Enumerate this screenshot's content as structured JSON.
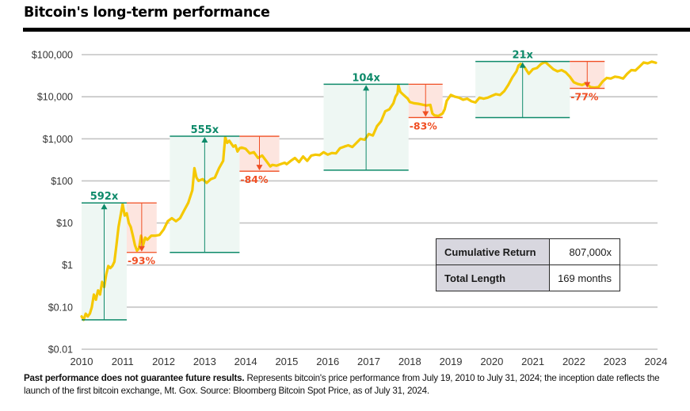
{
  "chart_data": {
    "type": "line",
    "title": "Bitcoin's long-term performance",
    "xlabel": "",
    "ylabel": "",
    "yscale": "log",
    "ylim": [
      0.01,
      100000
    ],
    "xlim": [
      2010,
      2024
    ],
    "grid": true,
    "y_ticks": [
      {
        "value": 100000,
        "label": "$100,000"
      },
      {
        "value": 10000,
        "label": "$10,000"
      },
      {
        "value": 1000,
        "label": "$1,000"
      },
      {
        "value": 100,
        "label": "$100"
      },
      {
        "value": 10,
        "label": "$10"
      },
      {
        "value": 1,
        "label": "$1"
      },
      {
        "value": 0.1,
        "label": "$0.10"
      },
      {
        "value": 0.01,
        "label": "$0.01"
      }
    ],
    "x_ticks": [
      "2010",
      "2011",
      "2012",
      "2013",
      "2014",
      "2015",
      "2016",
      "2017",
      "2018",
      "2019",
      "2020",
      "2021",
      "2022",
      "2023",
      "2024"
    ],
    "series": [
      {
        "name": "Bloomberg Bitcoin Spot Price",
        "color": "#f5c800",
        "points": [
          [
            2010.0,
            0.06
          ],
          [
            2010.05,
            0.05
          ],
          [
            2010.1,
            0.07
          ],
          [
            2010.15,
            0.06
          ],
          [
            2010.2,
            0.07
          ],
          [
            2010.25,
            0.1
          ],
          [
            2010.3,
            0.2
          ],
          [
            2010.35,
            0.15
          ],
          [
            2010.4,
            0.25
          ],
          [
            2010.45,
            0.2
          ],
          [
            2010.5,
            0.4
          ],
          [
            2010.55,
            0.3
          ],
          [
            2010.6,
            0.6
          ],
          [
            2010.65,
            0.95
          ],
          [
            2010.7,
            0.85
          ],
          [
            2010.75,
            0.95
          ],
          [
            2010.8,
            1.2
          ],
          [
            2010.85,
            3
          ],
          [
            2010.9,
            8
          ],
          [
            2010.95,
            15
          ],
          [
            2011.0,
            28
          ],
          [
            2011.05,
            15
          ],
          [
            2011.1,
            17
          ],
          [
            2011.15,
            10
          ],
          [
            2011.2,
            8
          ],
          [
            2011.25,
            5
          ],
          [
            2011.3,
            3
          ],
          [
            2011.35,
            2.2
          ],
          [
            2011.4,
            2.5
          ],
          [
            2011.45,
            5
          ],
          [
            2011.5,
            3
          ],
          [
            2011.55,
            4.5
          ],
          [
            2011.6,
            4
          ],
          [
            2011.7,
            5
          ],
          [
            2011.8,
            5
          ],
          [
            2011.9,
            5.2
          ],
          [
            2012.0,
            7
          ],
          [
            2012.1,
            11
          ],
          [
            2012.2,
            13
          ],
          [
            2012.3,
            11
          ],
          [
            2012.4,
            13
          ],
          [
            2012.5,
            20
          ],
          [
            2012.6,
            30
          ],
          [
            2012.7,
            60
          ],
          [
            2012.75,
            200
          ],
          [
            2012.8,
            120
          ],
          [
            2012.85,
            100
          ],
          [
            2012.95,
            110
          ],
          [
            2013.05,
            90
          ],
          [
            2013.15,
            110
          ],
          [
            2013.25,
            120
          ],
          [
            2013.35,
            200
          ],
          [
            2013.45,
            300
          ],
          [
            2013.5,
            1100
          ],
          [
            2013.55,
            800
          ],
          [
            2013.6,
            900
          ],
          [
            2013.7,
            650
          ],
          [
            2013.75,
            700
          ],
          [
            2013.8,
            500
          ],
          [
            2013.85,
            600
          ],
          [
            2013.9,
            620
          ],
          [
            2014.0,
            580
          ],
          [
            2014.1,
            450
          ],
          [
            2014.2,
            480
          ],
          [
            2014.3,
            350
          ],
          [
            2014.4,
            400
          ],
          [
            2014.5,
            300
          ],
          [
            2014.6,
            220
          ],
          [
            2014.65,
            240
          ],
          [
            2014.75,
            230
          ],
          [
            2014.85,
            250
          ],
          [
            2014.95,
            270
          ],
          [
            2015.0,
            250
          ],
          [
            2015.1,
            300
          ],
          [
            2015.2,
            350
          ],
          [
            2015.3,
            280
          ],
          [
            2015.4,
            380
          ],
          [
            2015.5,
            300
          ],
          [
            2015.6,
            400
          ],
          [
            2015.7,
            420
          ],
          [
            2015.8,
            410
          ],
          [
            2015.9,
            480
          ],
          [
            2016.0,
            420
          ],
          [
            2016.1,
            460
          ],
          [
            2016.2,
            450
          ],
          [
            2016.3,
            600
          ],
          [
            2016.4,
            650
          ],
          [
            2016.5,
            700
          ],
          [
            2016.6,
            640
          ],
          [
            2016.7,
            800
          ],
          [
            2016.8,
            1000
          ],
          [
            2016.9,
            950
          ],
          [
            2017.0,
            1300
          ],
          [
            2017.1,
            1200
          ],
          [
            2017.2,
            2000
          ],
          [
            2017.3,
            2600
          ],
          [
            2017.4,
            4500
          ],
          [
            2017.5,
            5000
          ],
          [
            2017.6,
            7000
          ],
          [
            2017.65,
            10000
          ],
          [
            2017.7,
            12000
          ],
          [
            2017.72,
            19000
          ],
          [
            2017.77,
            13000
          ],
          [
            2017.85,
            11000
          ],
          [
            2017.95,
            9000
          ],
          [
            2018.0,
            7500
          ],
          [
            2018.1,
            7000
          ],
          [
            2018.2,
            6800
          ],
          [
            2018.3,
            6500
          ],
          [
            2018.4,
            6200
          ],
          [
            2018.5,
            6400
          ],
          [
            2018.55,
            4000
          ],
          [
            2018.6,
            3600
          ],
          [
            2018.7,
            3500
          ],
          [
            2018.8,
            4000
          ],
          [
            2018.85,
            5000
          ],
          [
            2018.9,
            8000
          ],
          [
            2019.0,
            11000
          ],
          [
            2019.1,
            10000
          ],
          [
            2019.2,
            9500
          ],
          [
            2019.3,
            8500
          ],
          [
            2019.4,
            9000
          ],
          [
            2019.5,
            7800
          ],
          [
            2019.6,
            7300
          ],
          [
            2019.7,
            9500
          ],
          [
            2019.8,
            9000
          ],
          [
            2019.9,
            9500
          ],
          [
            2020.0,
            10500
          ],
          [
            2020.1,
            11500
          ],
          [
            2020.2,
            11000
          ],
          [
            2020.3,
            13500
          ],
          [
            2020.4,
            19000
          ],
          [
            2020.5,
            29000
          ],
          [
            2020.6,
            40000
          ],
          [
            2020.65,
            55000
          ],
          [
            2020.7,
            60000
          ],
          [
            2020.8,
            50000
          ],
          [
            2020.9,
            35000
          ],
          [
            2021.0,
            45000
          ],
          [
            2021.1,
            48000
          ],
          [
            2021.2,
            60000
          ],
          [
            2021.3,
            67000
          ],
          [
            2021.4,
            55000
          ],
          [
            2021.5,
            45000
          ],
          [
            2021.6,
            40000
          ],
          [
            2021.7,
            43000
          ],
          [
            2021.8,
            38000
          ],
          [
            2021.9,
            30000
          ],
          [
            2022.0,
            22000
          ],
          [
            2022.1,
            20000
          ],
          [
            2022.2,
            19000
          ],
          [
            2022.3,
            21000
          ],
          [
            2022.4,
            17000
          ],
          [
            2022.5,
            16500
          ],
          [
            2022.6,
            17000
          ],
          [
            2022.7,
            23000
          ],
          [
            2022.8,
            28000
          ],
          [
            2022.9,
            27000
          ],
          [
            2023.0,
            30000
          ],
          [
            2023.1,
            29000
          ],
          [
            2023.2,
            27000
          ],
          [
            2023.3,
            35000
          ],
          [
            2023.4,
            43000
          ],
          [
            2023.5,
            42000
          ],
          [
            2023.6,
            52000
          ],
          [
            2023.7,
            65000
          ],
          [
            2023.8,
            62000
          ],
          [
            2023.9,
            68000
          ],
          [
            2024.0,
            64000
          ]
        ]
      }
    ],
    "gain_periods": [
      {
        "label": "592x",
        "start": 2010.0,
        "end": 2011.1,
        "low": 0.05,
        "high": 30
      },
      {
        "label": "555x",
        "start": 2012.15,
        "end": 2013.85,
        "low": 2,
        "high": 1150
      },
      {
        "label": "104x",
        "start": 2015.9,
        "end": 2017.97,
        "low": 180,
        "high": 19800
      },
      {
        "label": "21x",
        "start": 2019.6,
        "end": 2021.9,
        "low": 3200,
        "high": 69000
      }
    ],
    "drawdown_periods": [
      {
        "label": "-93%",
        "start": 2011.1,
        "end": 2011.83,
        "high": 30,
        "low": 2
      },
      {
        "label": "-84%",
        "start": 2013.85,
        "end": 2014.82,
        "high": 1150,
        "low": 170
      },
      {
        "label": "-83%",
        "start": 2017.97,
        "end": 2018.8,
        "high": 19800,
        "low": 3200
      },
      {
        "label": "-77%",
        "start": 2021.9,
        "end": 2022.75,
        "high": 69000,
        "low": 15800
      }
    ],
    "colors": {
      "price_line": "#f5c800",
      "gain": "#0e8a6a",
      "gain_fill": "#eef7f3",
      "loss": "#f04e23",
      "loss_fill": "#fde5df",
      "grid": "#c4c4c4"
    }
  },
  "summary_table": {
    "rows": [
      {
        "label": "Cumulative Return",
        "value": "807,000x"
      },
      {
        "label": "Total Length",
        "value": "169 months"
      }
    ]
  },
  "footnote": {
    "bold": "Past performance does not guarantee future results.",
    "text": " Represents bitcoin's price performance from July 19, 2010 to July 31, 2024; the inception date reflects the launch of the first bitcoin exchange, Mt. Gox. Source: Bloomberg Bitcoin Spot Price, as of July 31, 2024."
  }
}
